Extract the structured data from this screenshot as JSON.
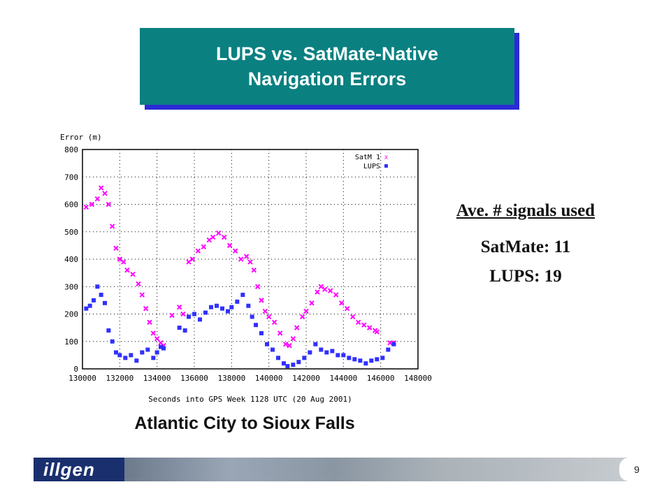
{
  "slide": {
    "title_line1": "LUPS vs. SatMate-Native",
    "title_line2": "Navigation Errors",
    "caption": "Atlantic City to Sioux Falls",
    "page_number": "9",
    "logo_text": "illgen"
  },
  "stats": {
    "heading": "Ave. # signals used",
    "line1": "SatMate: 11",
    "line2": "LUPS: 19"
  },
  "chart_data": {
    "type": "scatter",
    "ylabel": "Error (m)",
    "xlabel": "Seconds into GPS Week 1128 UTC (20 Aug 2001)",
    "xlim": [
      130000,
      148000
    ],
    "ylim": [
      0,
      800
    ],
    "xticks": [
      "130000",
      "132000",
      "134000",
      "136000",
      "138000",
      "140000",
      "142000",
      "144000",
      "146000",
      "148000"
    ],
    "yticks": [
      "0",
      "100",
      "200",
      "300",
      "400",
      "500",
      "600",
      "700",
      "800"
    ],
    "grid": true,
    "legend_position": "top-right",
    "series": [
      {
        "name": "SatM 1",
        "marker": "x",
        "color": "#ff00ff",
        "points": [
          [
            130200,
            590
          ],
          [
            130500,
            600
          ],
          [
            130800,
            620
          ],
          [
            131000,
            660
          ],
          [
            131200,
            640
          ],
          [
            131400,
            600
          ],
          [
            131600,
            520
          ],
          [
            131800,
            440
          ],
          [
            132000,
            400
          ],
          [
            132200,
            390
          ],
          [
            132400,
            360
          ],
          [
            132700,
            345
          ],
          [
            133000,
            310
          ],
          [
            133200,
            270
          ],
          [
            133400,
            220
          ],
          [
            133600,
            170
          ],
          [
            133800,
            130
          ],
          [
            134000,
            110
          ],
          [
            134200,
            95
          ],
          [
            134350,
            85
          ],
          [
            134800,
            195
          ],
          [
            135200,
            225
          ],
          [
            135400,
            200
          ],
          [
            135700,
            390
          ],
          [
            135900,
            400
          ],
          [
            136200,
            430
          ],
          [
            136500,
            445
          ],
          [
            136800,
            470
          ],
          [
            137000,
            480
          ],
          [
            137300,
            495
          ],
          [
            137600,
            480
          ],
          [
            137900,
            450
          ],
          [
            138200,
            430
          ],
          [
            138500,
            400
          ],
          [
            138800,
            410
          ],
          [
            139000,
            390
          ],
          [
            139200,
            360
          ],
          [
            139400,
            300
          ],
          [
            139600,
            250
          ],
          [
            139800,
            210
          ],
          [
            140000,
            190
          ],
          [
            140300,
            170
          ],
          [
            140600,
            130
          ],
          [
            140900,
            90
          ],
          [
            141100,
            85
          ],
          [
            141300,
            110
          ],
          [
            141500,
            150
          ],
          [
            141800,
            190
          ],
          [
            142000,
            210
          ],
          [
            142300,
            240
          ],
          [
            142600,
            280
          ],
          [
            142800,
            300
          ],
          [
            143000,
            290
          ],
          [
            143300,
            285
          ],
          [
            143600,
            270
          ],
          [
            143900,
            240
          ],
          [
            144200,
            220
          ],
          [
            144500,
            190
          ],
          [
            144800,
            170
          ],
          [
            145100,
            160
          ],
          [
            145400,
            150
          ],
          [
            145700,
            140
          ],
          [
            145800,
            135
          ],
          [
            146500,
            95
          ],
          [
            146700,
            95
          ]
        ]
      },
      {
        "name": "LUPS",
        "marker": "square",
        "color": "#3030ff",
        "points": [
          [
            130200,
            220
          ],
          [
            130400,
            230
          ],
          [
            130600,
            250
          ],
          [
            130800,
            300
          ],
          [
            131000,
            270
          ],
          [
            131200,
            240
          ],
          [
            131400,
            140
          ],
          [
            131600,
            100
          ],
          [
            131800,
            60
          ],
          [
            132000,
            50
          ],
          [
            132300,
            40
          ],
          [
            132600,
            50
          ],
          [
            132900,
            30
          ],
          [
            133200,
            60
          ],
          [
            133500,
            70
          ],
          [
            133800,
            40
          ],
          [
            134000,
            60
          ],
          [
            134200,
            80
          ],
          [
            134350,
            75
          ],
          [
            135200,
            150
          ],
          [
            135500,
            140
          ],
          [
            135700,
            190
          ],
          [
            136000,
            200
          ],
          [
            136300,
            180
          ],
          [
            136600,
            205
          ],
          [
            136900,
            225
          ],
          [
            137200,
            230
          ],
          [
            137500,
            220
          ],
          [
            137800,
            210
          ],
          [
            138000,
            225
          ],
          [
            138300,
            245
          ],
          [
            138600,
            270
          ],
          [
            138900,
            230
          ],
          [
            139100,
            190
          ],
          [
            139300,
            160
          ],
          [
            139600,
            130
          ],
          [
            139900,
            90
          ],
          [
            140200,
            70
          ],
          [
            140500,
            40
          ],
          [
            140800,
            20
          ],
          [
            141000,
            10
          ],
          [
            141300,
            15
          ],
          [
            141600,
            25
          ],
          [
            141900,
            40
          ],
          [
            142200,
            60
          ],
          [
            142500,
            90
          ],
          [
            142800,
            70
          ],
          [
            143100,
            60
          ],
          [
            143400,
            65
          ],
          [
            143700,
            50
          ],
          [
            144000,
            50
          ],
          [
            144300,
            40
          ],
          [
            144600,
            35
          ],
          [
            144900,
            30
          ],
          [
            145200,
            20
          ],
          [
            145500,
            30
          ],
          [
            145800,
            35
          ],
          [
            146100,
            40
          ],
          [
            146400,
            70
          ],
          [
            146700,
            90
          ]
        ]
      }
    ]
  }
}
